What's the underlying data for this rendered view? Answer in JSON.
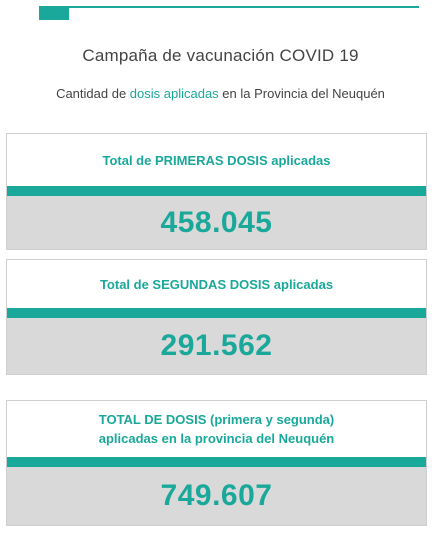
{
  "header": {
    "title": "Campaña de vacunación COVID 19",
    "subtitle_before": "Cantidad de ",
    "subtitle_highlight": "dosis aplicadas",
    "subtitle_after": " en la Provincia del Neuquén"
  },
  "cards": [
    {
      "label": "Total de PRIMERAS DOSIS aplicadas",
      "value": "458.045"
    },
    {
      "label": "Total de SEGUNDAS DOSIS aplicadas",
      "value": "291.562"
    },
    {
      "label_line1": "TOTAL DE DOSIS (primera y segunda)",
      "label_line2": "aplicadas en la provincia del Neuquén",
      "value": "749.607"
    }
  ],
  "colors": {
    "accent": "#1aa89a",
    "panel_gray": "#d9d9d9",
    "text": "#444444"
  }
}
